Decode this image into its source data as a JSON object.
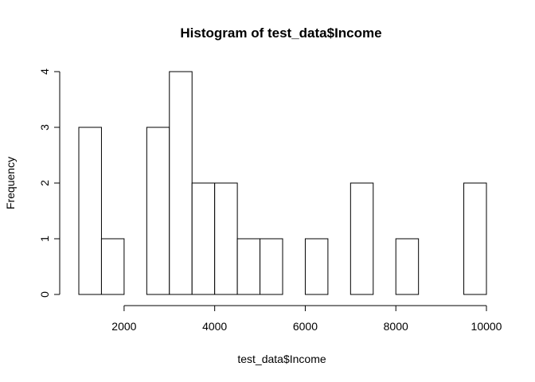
{
  "chart_data": {
    "type": "bar",
    "title": "Histogram of test_data$Income",
    "xlabel": "test_data$Income",
    "ylabel": "Frequency",
    "bins": [
      {
        "start": 1000,
        "end": 1500,
        "count": 3
      },
      {
        "start": 1500,
        "end": 2000,
        "count": 1
      },
      {
        "start": 2000,
        "end": 2500,
        "count": 0
      },
      {
        "start": 2500,
        "end": 3000,
        "count": 3
      },
      {
        "start": 3000,
        "end": 3500,
        "count": 4
      },
      {
        "start": 3500,
        "end": 4000,
        "count": 2
      },
      {
        "start": 4000,
        "end": 4500,
        "count": 2
      },
      {
        "start": 4500,
        "end": 5000,
        "count": 1
      },
      {
        "start": 5000,
        "end": 5500,
        "count": 1
      },
      {
        "start": 5500,
        "end": 6000,
        "count": 0
      },
      {
        "start": 6000,
        "end": 6500,
        "count": 1
      },
      {
        "start": 6500,
        "end": 7000,
        "count": 0
      },
      {
        "start": 7000,
        "end": 7500,
        "count": 2
      },
      {
        "start": 7500,
        "end": 8000,
        "count": 0
      },
      {
        "start": 8000,
        "end": 8500,
        "count": 1
      },
      {
        "start": 8500,
        "end": 9000,
        "count": 0
      },
      {
        "start": 9000,
        "end": 9500,
        "count": 0
      },
      {
        "start": 9500,
        "end": 10000,
        "count": 2
      }
    ],
    "xlim": [
      1000,
      10000
    ],
    "ylim": [
      0,
      4
    ],
    "x_ticks": [
      2000,
      4000,
      6000,
      8000,
      10000
    ],
    "x_tick_labels": [
      "2000",
      "4000",
      "6000",
      "8000",
      "10000"
    ],
    "y_ticks": [
      0,
      1,
      2,
      3,
      4
    ],
    "y_tick_labels": [
      "0",
      "1",
      "2",
      "3",
      "4"
    ],
    "grid": false,
    "colors": {
      "bar_fill": "#ffffff",
      "bar_stroke": "#000000"
    }
  }
}
